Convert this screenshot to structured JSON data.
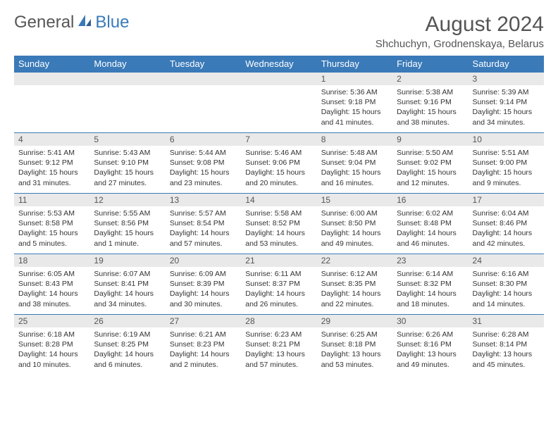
{
  "brand": {
    "part1": "General",
    "part2": "Blue"
  },
  "title": "August 2024",
  "location": "Shchuchyn, Grodnenskaya, Belarus",
  "colors": {
    "header_bg": "#3a7ab8",
    "header_text": "#ffffff",
    "daynum_bg": "#e9e9e9",
    "text": "#333333",
    "border": "#3a7ab8",
    "page_bg": "#ffffff"
  },
  "weekdays": [
    "Sunday",
    "Monday",
    "Tuesday",
    "Wednesday",
    "Thursday",
    "Friday",
    "Saturday"
  ],
  "weeks": [
    [
      null,
      null,
      null,
      null,
      {
        "n": "1",
        "sr": "5:36 AM",
        "ss": "9:18 PM",
        "dl": "15 hours and 41 minutes."
      },
      {
        "n": "2",
        "sr": "5:38 AM",
        "ss": "9:16 PM",
        "dl": "15 hours and 38 minutes."
      },
      {
        "n": "3",
        "sr": "5:39 AM",
        "ss": "9:14 PM",
        "dl": "15 hours and 34 minutes."
      }
    ],
    [
      {
        "n": "4",
        "sr": "5:41 AM",
        "ss": "9:12 PM",
        "dl": "15 hours and 31 minutes."
      },
      {
        "n": "5",
        "sr": "5:43 AM",
        "ss": "9:10 PM",
        "dl": "15 hours and 27 minutes."
      },
      {
        "n": "6",
        "sr": "5:44 AM",
        "ss": "9:08 PM",
        "dl": "15 hours and 23 minutes."
      },
      {
        "n": "7",
        "sr": "5:46 AM",
        "ss": "9:06 PM",
        "dl": "15 hours and 20 minutes."
      },
      {
        "n": "8",
        "sr": "5:48 AM",
        "ss": "9:04 PM",
        "dl": "15 hours and 16 minutes."
      },
      {
        "n": "9",
        "sr": "5:50 AM",
        "ss": "9:02 PM",
        "dl": "15 hours and 12 minutes."
      },
      {
        "n": "10",
        "sr": "5:51 AM",
        "ss": "9:00 PM",
        "dl": "15 hours and 9 minutes."
      }
    ],
    [
      {
        "n": "11",
        "sr": "5:53 AM",
        "ss": "8:58 PM",
        "dl": "15 hours and 5 minutes."
      },
      {
        "n": "12",
        "sr": "5:55 AM",
        "ss": "8:56 PM",
        "dl": "15 hours and 1 minute."
      },
      {
        "n": "13",
        "sr": "5:57 AM",
        "ss": "8:54 PM",
        "dl": "14 hours and 57 minutes."
      },
      {
        "n": "14",
        "sr": "5:58 AM",
        "ss": "8:52 PM",
        "dl": "14 hours and 53 minutes."
      },
      {
        "n": "15",
        "sr": "6:00 AM",
        "ss": "8:50 PM",
        "dl": "14 hours and 49 minutes."
      },
      {
        "n": "16",
        "sr": "6:02 AM",
        "ss": "8:48 PM",
        "dl": "14 hours and 46 minutes."
      },
      {
        "n": "17",
        "sr": "6:04 AM",
        "ss": "8:46 PM",
        "dl": "14 hours and 42 minutes."
      }
    ],
    [
      {
        "n": "18",
        "sr": "6:05 AM",
        "ss": "8:43 PM",
        "dl": "14 hours and 38 minutes."
      },
      {
        "n": "19",
        "sr": "6:07 AM",
        "ss": "8:41 PM",
        "dl": "14 hours and 34 minutes."
      },
      {
        "n": "20",
        "sr": "6:09 AM",
        "ss": "8:39 PM",
        "dl": "14 hours and 30 minutes."
      },
      {
        "n": "21",
        "sr": "6:11 AM",
        "ss": "8:37 PM",
        "dl": "14 hours and 26 minutes."
      },
      {
        "n": "22",
        "sr": "6:12 AM",
        "ss": "8:35 PM",
        "dl": "14 hours and 22 minutes."
      },
      {
        "n": "23",
        "sr": "6:14 AM",
        "ss": "8:32 PM",
        "dl": "14 hours and 18 minutes."
      },
      {
        "n": "24",
        "sr": "6:16 AM",
        "ss": "8:30 PM",
        "dl": "14 hours and 14 minutes."
      }
    ],
    [
      {
        "n": "25",
        "sr": "6:18 AM",
        "ss": "8:28 PM",
        "dl": "14 hours and 10 minutes."
      },
      {
        "n": "26",
        "sr": "6:19 AM",
        "ss": "8:25 PM",
        "dl": "14 hours and 6 minutes."
      },
      {
        "n": "27",
        "sr": "6:21 AM",
        "ss": "8:23 PM",
        "dl": "14 hours and 2 minutes."
      },
      {
        "n": "28",
        "sr": "6:23 AM",
        "ss": "8:21 PM",
        "dl": "13 hours and 57 minutes."
      },
      {
        "n": "29",
        "sr": "6:25 AM",
        "ss": "8:18 PM",
        "dl": "13 hours and 53 minutes."
      },
      {
        "n": "30",
        "sr": "6:26 AM",
        "ss": "8:16 PM",
        "dl": "13 hours and 49 minutes."
      },
      {
        "n": "31",
        "sr": "6:28 AM",
        "ss": "8:14 PM",
        "dl": "13 hours and 45 minutes."
      }
    ]
  ],
  "labels": {
    "sunrise": "Sunrise:",
    "sunset": "Sunset:",
    "daylight": "Daylight:"
  }
}
